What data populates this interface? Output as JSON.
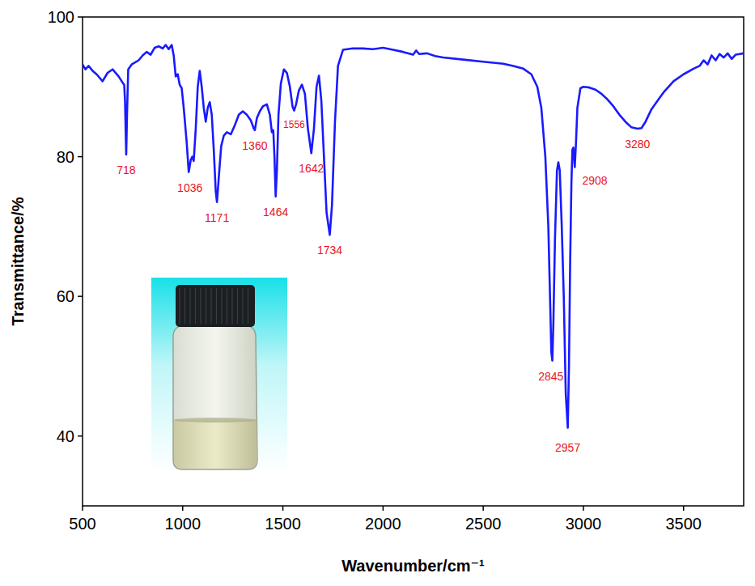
{
  "chart_data": {
    "type": "line",
    "xlabel": "Wavenumber/cm⁻¹",
    "ylabel": "Transmittance/%",
    "color": "#1a1aff",
    "xlim": [
      500,
      3800
    ],
    "ylim": [
      30,
      100
    ],
    "xticks": [
      500,
      1000,
      1500,
      2000,
      2500,
      3000,
      3500
    ],
    "yticks": [
      40,
      60,
      80,
      100
    ],
    "grid": false,
    "x": [
      500,
      515,
      530,
      550,
      570,
      600,
      625,
      650,
      680,
      700,
      708,
      712,
      718,
      722,
      728,
      745,
      780,
      800,
      820,
      840,
      860,
      880,
      900,
      915,
      930,
      945,
      955,
      965,
      975,
      985,
      995,
      1005,
      1020,
      1030,
      1040,
      1048,
      1055,
      1065,
      1075,
      1085,
      1095,
      1105,
      1115,
      1125,
      1135,
      1145,
      1155,
      1165,
      1171,
      1180,
      1192,
      1205,
      1220,
      1240,
      1260,
      1280,
      1300,
      1320,
      1340,
      1355,
      1360,
      1370,
      1385,
      1400,
      1420,
      1435,
      1445,
      1452,
      1458,
      1464,
      1470,
      1478,
      1490,
      1505,
      1520,
      1535,
      1548,
      1556,
      1566,
      1580,
      1595,
      1610,
      1625,
      1642,
      1655,
      1668,
      1680,
      1692,
      1705,
      1718,
      1734,
      1745,
      1760,
      1775,
      1800,
      1850,
      1900,
      1950,
      2000,
      2050,
      2100,
      2150,
      2165,
      2180,
      2220,
      2260,
      2300,
      2400,
      2500,
      2600,
      2650,
      2700,
      2740,
      2770,
      2790,
      2810,
      2825,
      2835,
      2840,
      2845,
      2850,
      2858,
      2868,
      2875,
      2882,
      2892,
      2902,
      2912,
      2922,
      2928,
      2934,
      2940,
      2945,
      2950,
      2957,
      2963,
      2970,
      2985,
      3000,
      3030,
      3060,
      3090,
      3120,
      3150,
      3180,
      3210,
      3240,
      3270,
      3290,
      3310,
      3340,
      3370,
      3400,
      3450,
      3500,
      3550,
      3580,
      3600,
      3620,
      3640,
      3660,
      3680,
      3700,
      3720,
      3740,
      3760,
      3780,
      3800
    ],
    "values": [
      93.2,
      92.5,
      93.0,
      92.3,
      91.8,
      90.8,
      92.0,
      92.5,
      91.5,
      90.6,
      90.3,
      88.0,
      80.3,
      86.0,
      92.5,
      93.2,
      93.8,
      94.5,
      95.0,
      94.6,
      95.6,
      95.8,
      95.5,
      96.0,
      95.4,
      96.0,
      94.5,
      91.5,
      91.8,
      90.3,
      89.8,
      87.0,
      82.0,
      77.8,
      79.5,
      80.0,
      79.4,
      84.0,
      90.0,
      92.3,
      90.0,
      87.0,
      85.0,
      87.0,
      87.8,
      86.0,
      81.0,
      75.0,
      73.5,
      77.0,
      81.5,
      83.0,
      83.5,
      83.2,
      84.5,
      86.0,
      86.5,
      86.0,
      85.2,
      84.0,
      83.8,
      85.5,
      86.5,
      87.2,
      87.5,
      86.0,
      83.5,
      83.8,
      80.0,
      74.3,
      78.0,
      86.0,
      90.5,
      92.5,
      92.0,
      90.0,
      87.2,
      86.6,
      87.5,
      89.5,
      90.3,
      89.0,
      84.0,
      80.5,
      84.0,
      90.0,
      91.6,
      88.0,
      80.0,
      72.0,
      68.8,
      73.0,
      85.0,
      93.0,
      95.3,
      95.5,
      95.5,
      95.4,
      95.6,
      95.3,
      95.0,
      94.6,
      95.2,
      94.7,
      94.8,
      94.4,
      94.2,
      93.9,
      93.6,
      93.3,
      93.0,
      92.6,
      91.8,
      90.0,
      87.0,
      80.0,
      70.0,
      58.0,
      52.0,
      50.8,
      56.0,
      68.0,
      78.0,
      79.2,
      78.0,
      70.0,
      60.0,
      46.0,
      41.2,
      50.0,
      65.0,
      76.0,
      81.0,
      81.3,
      78.5,
      82.0,
      87.0,
      89.8,
      90.0,
      89.9,
      89.6,
      89.0,
      88.2,
      87.2,
      86.0,
      85.0,
      84.2,
      84.0,
      84.1,
      85.0,
      86.8,
      88.0,
      89.2,
      90.8,
      91.8,
      92.6,
      93.0,
      93.8,
      93.2,
      94.5,
      93.8,
      94.7,
      94.2,
      94.8,
      94.0,
      94.6,
      94.7,
      94.8
    ],
    "annotations": [
      {
        "text": "718",
        "x": 718,
        "y": 78.1
      },
      {
        "text": "1036",
        "x": 1036,
        "y": 75.6
      },
      {
        "text": "1171",
        "x": 1171,
        "y": 71.3
      },
      {
        "text": "1360",
        "x": 1360,
        "y": 81.6
      },
      {
        "text": "1464",
        "x": 1464,
        "y": 72.1
      },
      {
        "text": "1556",
        "x": 1556,
        "y": 84.6
      },
      {
        "text": "1642",
        "x": 1642,
        "y": 78.3
      },
      {
        "text": "1734",
        "x": 1734,
        "y": 66.6
      },
      {
        "text": "2845",
        "x": 2838,
        "y": 48.6
      },
      {
        "text": "2957",
        "x": 2922,
        "y": 38.4
      },
      {
        "text": "2908",
        "x": 3057,
        "y": 76.6
      },
      {
        "text": "3280",
        "x": 3270,
        "y": 81.8
      }
    ]
  }
}
